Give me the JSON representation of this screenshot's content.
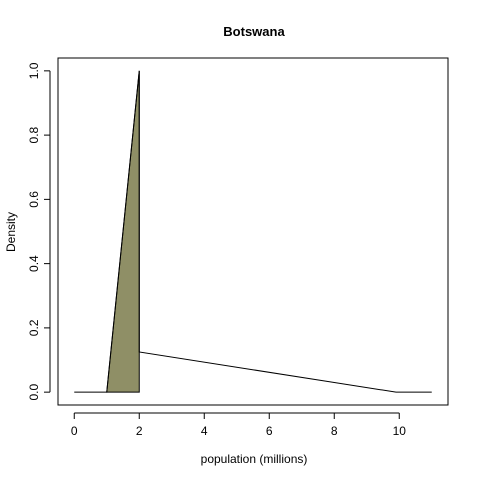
{
  "chart_data": {
    "type": "area",
    "title": "Botswana",
    "xlabel": "population (millions)",
    "ylabel": "Density",
    "xlim": [
      -0.5,
      11.5
    ],
    "ylim": [
      -0.04,
      1.04
    ],
    "x_ticks": [
      0,
      2,
      4,
      6,
      8,
      10
    ],
    "y_ticks": [
      0.0,
      0.2,
      0.4,
      0.6,
      0.8,
      1.0
    ],
    "x_tick_labels": [
      "0",
      "2",
      "4",
      "6",
      "8",
      "10"
    ],
    "y_tick_labels": [
      "0.0",
      "0.2",
      "0.4",
      "0.6",
      "0.8",
      "1.0"
    ],
    "grid": false,
    "series": [
      {
        "points": [
          {
            "x": 0.0,
            "y": 0.0
          },
          {
            "x": 1.0,
            "y": 0.0
          },
          {
            "x": 2.0,
            "y": 1.0
          },
          {
            "x": 2.0,
            "y": 0.125
          },
          {
            "x": 9.9,
            "y": 0.0
          },
          {
            "x": 11.0,
            "y": 0.0
          }
        ],
        "line_color": "#000000"
      }
    ],
    "shaded_region": {
      "points": [
        {
          "x": 1.0,
          "y": 0.0
        },
        {
          "x": 2.0,
          "y": 1.0
        },
        {
          "x": 2.0,
          "y": 0.0
        }
      ],
      "fill_color": "#8f8f66"
    }
  }
}
